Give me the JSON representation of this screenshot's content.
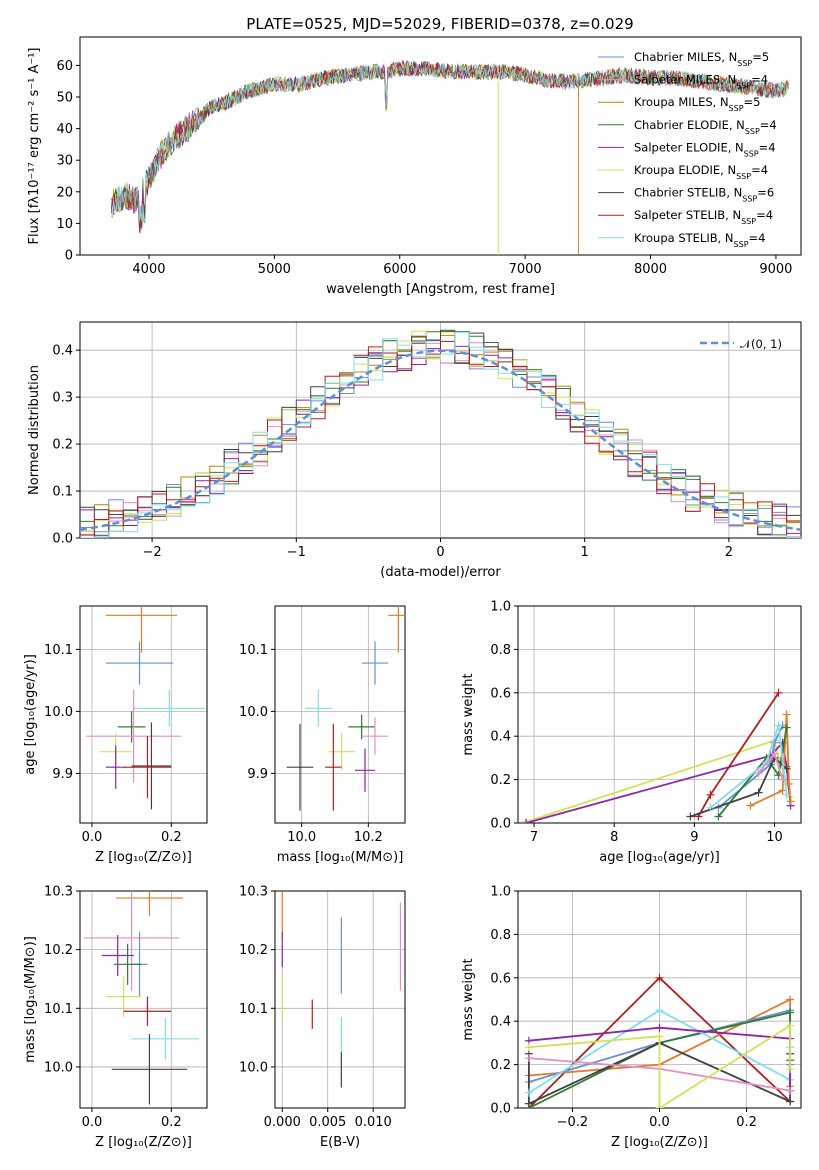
{
  "title": "PLATE=0525, MJD=52029, FIBERID=0378, z=0.029",
  "chart_data": [
    {
      "type": "line",
      "id": "spectrum",
      "title": "PLATE=0525, MJD=52029, FIBERID=0378, z=0.029",
      "xlabel": "wavelength [Angstrom, rest frame]",
      "ylabel": "Flux [fλ10⁻¹⁷ erg cm⁻² s⁻¹ A⁻¹]",
      "xlim": [
        3450,
        9200
      ],
      "ylim": [
        0,
        69
      ],
      "xticks": [
        4000,
        5000,
        6000,
        7000,
        8000,
        9000
      ],
      "yticks": [
        0,
        10,
        20,
        30,
        40,
        50,
        60
      ],
      "legend_position": "top-right",
      "continuum": [
        [
          3700,
          16
        ],
        [
          3800,
          19
        ],
        [
          3900,
          17
        ],
        [
          4000,
          24
        ],
        [
          4100,
          32
        ],
        [
          4200,
          37
        ],
        [
          4300,
          40
        ],
        [
          4400,
          43
        ],
        [
          4500,
          47
        ],
        [
          4600,
          48
        ],
        [
          4700,
          50
        ],
        [
          4800,
          52
        ],
        [
          4900,
          53
        ],
        [
          5000,
          54
        ],
        [
          5100,
          54
        ],
        [
          5200,
          54
        ],
        [
          5400,
          56
        ],
        [
          5600,
          57
        ],
        [
          5800,
          58
        ],
        [
          5900,
          58
        ],
        [
          6000,
          59
        ],
        [
          6200,
          59
        ],
        [
          6400,
          58
        ],
        [
          6600,
          58
        ],
        [
          6800,
          58
        ],
        [
          7000,
          57
        ],
        [
          7200,
          55
        ],
        [
          7400,
          55
        ],
        [
          7600,
          56
        ],
        [
          7800,
          57
        ],
        [
          8000,
          56
        ],
        [
          8200,
          56
        ],
        [
          8400,
          55
        ],
        [
          8600,
          54
        ],
        [
          8800,
          53
        ],
        [
          9000,
          52
        ],
        [
          9100,
          53
        ]
      ],
      "series": [
        {
          "name": "Chabrier MILES",
          "nssp": "5",
          "color": "#6a8fd8"
        },
        {
          "name": "Salpeter MILES",
          "nssp": "4",
          "color": "#e88cc4"
        },
        {
          "name": "Kroupa MILES",
          "nssp": "5",
          "color": "#b8860b"
        },
        {
          "name": "Chabrier ELODIE",
          "nssp": "4",
          "color": "#2e7d32"
        },
        {
          "name": "Salpeter ELODIE",
          "nssp": "4",
          "color": "#8e24aa"
        },
        {
          "name": "Kroupa ELODIE",
          "nssp": "4",
          "color": "#d4e157"
        },
        {
          "name": "Chabrier STELIB",
          "nssp": "6",
          "color": "#424242"
        },
        {
          "name": "Salpeter STELIB",
          "nssp": "4",
          "color": "#b71c1c"
        },
        {
          "name": "Kroupa STELIB",
          "nssp": "4",
          "color": "#80deea"
        }
      ],
      "spikes": [
        {
          "x": 6785,
          "y": 0,
          "color": "#d4e157"
        },
        {
          "x": 7425,
          "y": 0,
          "color": "#e07b2a"
        }
      ]
    },
    {
      "type": "histogram",
      "id": "residuals",
      "xlabel": "(data-model)/error",
      "ylabel": "Normed distribution",
      "xlim": [
        -2.5,
        2.5
      ],
      "ylim": [
        0,
        0.46
      ],
      "xticks": [
        -2,
        -1,
        0,
        1,
        2
      ],
      "yticks": [
        0.0,
        0.1,
        0.2,
        0.3,
        0.4
      ],
      "legend": "𝒩(0, 1)",
      "legend_position": "top-right",
      "reference_curve": "normal(0,1)",
      "reference_color": "#5b8fd6"
    },
    {
      "type": "scatter",
      "id": "age-vs-Z",
      "xlabel": "Z [log₁₀(Z/Z⊙)]",
      "ylabel": "age  [log₁₀(age/yr)]",
      "xlim": [
        -0.03,
        0.29
      ],
      "ylim": [
        9.82,
        10.17
      ],
      "xticks": [
        0.0,
        0.2
      ],
      "yticks": [
        9.9,
        10.0,
        10.1
      ],
      "points": [
        {
          "x": 0.125,
          "y": 10.155,
          "xerr": 0.09,
          "yerr": 0.06,
          "color": "#e07b2a"
        },
        {
          "x": 0.12,
          "y": 10.078,
          "xerr": 0.085,
          "yerr": 0.035,
          "color": "#6a8fd8"
        },
        {
          "x": 0.195,
          "y": 10.005,
          "xerr": 0.09,
          "yerr": 0.03,
          "color": "#80deea"
        },
        {
          "x": 0.1,
          "y": 9.975,
          "xerr": 0.035,
          "yerr": 0.025,
          "color": "#2e7d32"
        },
        {
          "x": 0.105,
          "y": 9.96,
          "xerr": 0.12,
          "yerr": 0.075,
          "color": "#e88cc4"
        },
        {
          "x": 0.06,
          "y": 9.935,
          "xerr": 0.04,
          "yerr": 0.03,
          "color": "#d4e157"
        },
        {
          "x": 0.06,
          "y": 9.91,
          "xerr": 0.025,
          "yerr": 0.035,
          "color": "#8e24aa"
        },
        {
          "x": 0.15,
          "y": 9.912,
          "xerr": 0.05,
          "yerr": 0.07,
          "color": "#424242"
        },
        {
          "x": 0.14,
          "y": 9.91,
          "xerr": 0.06,
          "yerr": 0.05,
          "color": "#b71c1c"
        }
      ]
    },
    {
      "type": "scatter",
      "id": "age-vs-mass",
      "xlabel": "mass [log₁₀(M/M⊙)]",
      "ylabel": "",
      "xlim": [
        9.92,
        10.31
      ],
      "ylim": [
        9.82,
        10.17
      ],
      "xticks": [
        10.0,
        10.2
      ],
      "yticks": [
        9.9,
        10.0,
        10.1
      ],
      "points": [
        {
          "x": 10.29,
          "y": 10.155,
          "xerr": 0.03,
          "yerr": 0.06,
          "color": "#e07b2a"
        },
        {
          "x": 10.22,
          "y": 10.078,
          "xerr": 0.04,
          "yerr": 0.035,
          "color": "#6a8fd8"
        },
        {
          "x": 10.05,
          "y": 10.005,
          "xerr": 0.04,
          "yerr": 0.03,
          "color": "#80deea"
        },
        {
          "x": 10.18,
          "y": 9.975,
          "xerr": 0.04,
          "yerr": 0.02,
          "color": "#2e7d32"
        },
        {
          "x": 10.22,
          "y": 9.96,
          "xerr": 0.04,
          "yerr": 0.03,
          "color": "#e88cc4"
        },
        {
          "x": 10.12,
          "y": 9.935,
          "xerr": 0.04,
          "yerr": 0.03,
          "color": "#d4e157"
        },
        {
          "x": 10.19,
          "y": 9.905,
          "xerr": 0.03,
          "yerr": 0.035,
          "color": "#8e24aa"
        },
        {
          "x": 9.995,
          "y": 9.91,
          "xerr": 0.04,
          "yerr": 0.07,
          "color": "#424242"
        },
        {
          "x": 10.095,
          "y": 9.91,
          "xerr": 0.025,
          "yerr": 0.07,
          "color": "#b71c1c"
        }
      ]
    },
    {
      "type": "line",
      "id": "massweight-vs-age",
      "xlabel": "age  [log₁₀(age/yr)]",
      "ylabel": "mass weight",
      "xlim": [
        6.8,
        10.33
      ],
      "ylim": [
        0,
        1
      ],
      "xticks": [
        7,
        8,
        9,
        10
      ],
      "yticks": [
        0.0,
        0.2,
        0.4,
        0.6,
        0.8,
        1.0
      ],
      "series": [
        {
          "color": "#d4e157",
          "x": [
            6.9,
            10.0,
            10.05,
            10.15,
            10.2
          ],
          "y": [
            0.005,
            0.38,
            0.3,
            0.19,
            0.12
          ]
        },
        {
          "color": "#8e24aa",
          "x": [
            6.9,
            9.95,
            10.1,
            10.15,
            10.2
          ],
          "y": [
            0.0,
            0.31,
            0.37,
            0.26,
            0.08
          ]
        },
        {
          "color": "#b71c1c",
          "x": [
            9.05,
            9.2,
            10.05
          ],
          "y": [
            0.03,
            0.13,
            0.6
          ]
        },
        {
          "color": "#e07b2a",
          "x": [
            9.7,
            10.1,
            10.15,
            10.18,
            10.2
          ],
          "y": [
            0.08,
            0.15,
            0.5,
            0.18,
            0.1
          ]
        },
        {
          "color": "#6a8fd8",
          "x": [
            9.3,
            9.95,
            10.0,
            10.1
          ],
          "y": [
            0.07,
            0.27,
            0.37,
            0.45
          ]
        },
        {
          "color": "#2e7d32",
          "x": [
            9.3,
            9.9,
            10.05,
            10.15
          ],
          "y": [
            0.03,
            0.3,
            0.22,
            0.44
          ]
        },
        {
          "color": "#424242",
          "x": [
            8.95,
            9.8,
            10.0,
            10.15
          ],
          "y": [
            0.03,
            0.14,
            0.3,
            0.25
          ]
        },
        {
          "color": "#80deea",
          "x": [
            9.2,
            9.9,
            10.05,
            10.15
          ],
          "y": [
            0.07,
            0.28,
            0.45,
            0.13
          ]
        },
        {
          "color": "#e88cc4",
          "x": [
            9.8,
            10.0,
            10.1
          ],
          "y": [
            0.23,
            0.32,
            0.2
          ]
        }
      ]
    },
    {
      "type": "scatter",
      "id": "mass-vs-Z",
      "xlabel": "Z [log₁₀(Z/Z⊙)]",
      "ylabel": "mass [log₁₀(M/M⊙)]",
      "xlim": [
        -0.03,
        0.29
      ],
      "ylim": [
        9.93,
        10.3
      ],
      "xticks": [
        0.0,
        0.2
      ],
      "yticks": [
        10.0,
        10.1,
        10.2,
        10.3
      ],
      "points": [
        {
          "x": 0.145,
          "y": 10.288,
          "xerr": 0.085,
          "yerr": 0.03,
          "color": "#e07b2a"
        },
        {
          "x": 0.1,
          "y": 10.22,
          "xerr": 0.12,
          "yerr": 0.09,
          "color": "#e88cc4"
        },
        {
          "x": 0.065,
          "y": 10.19,
          "xerr": 0.04,
          "yerr": 0.035,
          "color": "#8e24aa"
        },
        {
          "x": 0.12,
          "y": 10.175,
          "xerr": 0.02,
          "yerr": 0.055,
          "color": "#6a8fd8"
        },
        {
          "x": 0.09,
          "y": 10.175,
          "xerr": 0.035,
          "yerr": 0.035,
          "color": "#2e7d32"
        },
        {
          "x": 0.08,
          "y": 10.12,
          "xerr": 0.045,
          "yerr": 0.035,
          "color": "#d4e157"
        },
        {
          "x": 0.14,
          "y": 10.095,
          "xerr": 0.06,
          "yerr": 0.025,
          "color": "#b71c1c"
        },
        {
          "x": 0.185,
          "y": 10.048,
          "xerr": 0.085,
          "yerr": 0.035,
          "color": "#80deea"
        },
        {
          "x": 0.145,
          "y": 9.996,
          "xerr": 0.095,
          "yerr": 0.06,
          "color": "#424242"
        }
      ]
    },
    {
      "type": "scatter",
      "id": "mass-vs-EBV",
      "xlabel": "E(B-V)",
      "ylabel": "",
      "xlim": [
        -0.0008,
        0.0135
      ],
      "ylim": [
        9.93,
        10.3
      ],
      "xticks": [
        0.0,
        0.005,
        0.01
      ],
      "yticks": [
        10.0,
        10.1,
        10.2,
        10.3
      ],
      "points": [
        {
          "x": 0.0,
          "y": 10.26,
          "xerr": 0,
          "yerr": 0.04,
          "color": "#e07b2a"
        },
        {
          "x": 0.0,
          "y": 10.2,
          "xerr": 0,
          "yerr": 0.03,
          "color": "#8e24aa"
        },
        {
          "x": 0.0,
          "y": 10.12,
          "xerr": 0,
          "yerr": 0.035,
          "color": "#d4e157"
        },
        {
          "x": 0.0033,
          "y": 10.09,
          "xerr": 0,
          "yerr": 0.025,
          "color": "#b71c1c"
        },
        {
          "x": 0.0065,
          "y": 10.19,
          "xerr": 0,
          "yerr": 0.065,
          "color": "#6a8fd8"
        },
        {
          "x": 0.0065,
          "y": 10.05,
          "xerr": 0,
          "yerr": 0.035,
          "color": "#80deea"
        },
        {
          "x": 0.0065,
          "y": 9.995,
          "xerr": 0,
          "yerr": 0.03,
          "color": "#424242"
        },
        {
          "x": 0.013,
          "y": 10.205,
          "xerr": 0,
          "yerr": 0.075,
          "color": "#e88cc4"
        }
      ]
    },
    {
      "type": "line",
      "id": "massweight-vs-Z",
      "xlabel": "Z [log₁₀(Z/Z⊙)]",
      "ylabel": "mass weight",
      "xlim": [
        -0.325,
        0.325
      ],
      "ylim": [
        0,
        1
      ],
      "xticks": [
        -0.2,
        0.0,
        0.2
      ],
      "yticks": [
        0.0,
        0.2,
        0.4,
        0.6,
        0.8,
        1.0
      ],
      "series": [
        {
          "color": "#b71c1c",
          "x": [
            -0.3,
            0.0,
            0.3
          ],
          "y": [
            0.0,
            0.6,
            0.03
          ]
        },
        {
          "color": "#e07b2a",
          "x": [
            -0.3,
            0.0,
            0.3,
            0.3
          ],
          "y": [
            0.15,
            0.2,
            0.5,
            0.1
          ]
        },
        {
          "color": "#6a8fd8",
          "x": [
            -0.3,
            0.0,
            0.3,
            0.3
          ],
          "y": [
            0.12,
            0.3,
            0.45,
            0.2
          ]
        },
        {
          "color": "#2e7d32",
          "x": [
            -0.3,
            0.0,
            0.3,
            0.3
          ],
          "y": [
            0.0,
            0.3,
            0.44,
            0.22
          ]
        },
        {
          "color": "#424242",
          "x": [
            -0.3,
            -0.3,
            0.0,
            0.3,
            0.3
          ],
          "y": [
            0.25,
            0.02,
            0.3,
            0.03,
            0.25
          ]
        },
        {
          "color": "#80deea",
          "x": [
            -0.3,
            0.0,
            0.3,
            0.3
          ],
          "y": [
            0.07,
            0.45,
            0.13,
            0.28
          ]
        },
        {
          "color": "#8e24aa",
          "x": [
            -0.3,
            0.0,
            0.3,
            0.3
          ],
          "y": [
            0.31,
            0.37,
            0.32,
            0.08
          ]
        },
        {
          "color": "#e88cc4",
          "x": [
            -0.3,
            0.0,
            0.3
          ],
          "y": [
            0.23,
            0.18,
            0.08
          ]
        },
        {
          "color": "#d4e157",
          "x": [
            -0.3,
            0.0,
            0.0,
            0.3,
            0.3
          ],
          "y": [
            0.28,
            0.33,
            0.0,
            0.38,
            0.18
          ]
        }
      ]
    }
  ]
}
